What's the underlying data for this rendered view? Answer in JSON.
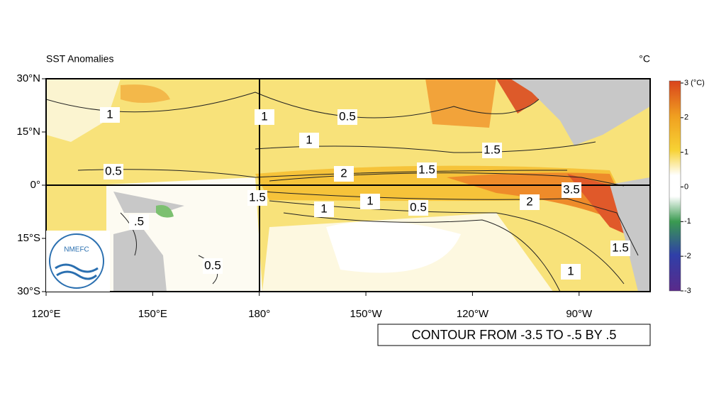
{
  "map": {
    "title": "SST Anomalies",
    "unit": "°C",
    "latlim": [
      -30,
      30
    ],
    "lonlim": [
      120,
      290
    ],
    "lat_ticks": [
      {
        "value": 30,
        "label": "30°N"
      },
      {
        "value": 15,
        "label": "15°N"
      },
      {
        "value": 0,
        "label": "0°"
      },
      {
        "value": -15,
        "label": "15°S"
      },
      {
        "value": -30,
        "label": "30°S"
      }
    ],
    "lon_ticks": [
      {
        "value": 120,
        "label": "120°E"
      },
      {
        "value": 150,
        "label": "150°E"
      },
      {
        "value": 180,
        "label": "180°"
      },
      {
        "value": 210,
        "label": "150°W"
      },
      {
        "value": 240,
        "label": "120°W"
      },
      {
        "value": 270,
        "label": "90°W"
      }
    ],
    "colorbar": {
      "range": [
        -3,
        3
      ],
      "ticks": [
        {
          "value": 3,
          "label": "3 (°C)"
        },
        2,
        1,
        0,
        -1,
        -2,
        -3
      ]
    },
    "contour_labels": [
      "1",
      "1",
      "0.5",
      "1",
      "1.5",
      "0.5",
      "2",
      "1.5",
      "1.5",
      "1",
      "1",
      "0.5",
      "2",
      "3.5",
      "1.5",
      "1",
      "0.5",
      ".5"
    ],
    "logo": {
      "text": "NMEFC"
    },
    "footer": "CONTOUR FROM -3.5 TO -.5 BY .5"
  }
}
